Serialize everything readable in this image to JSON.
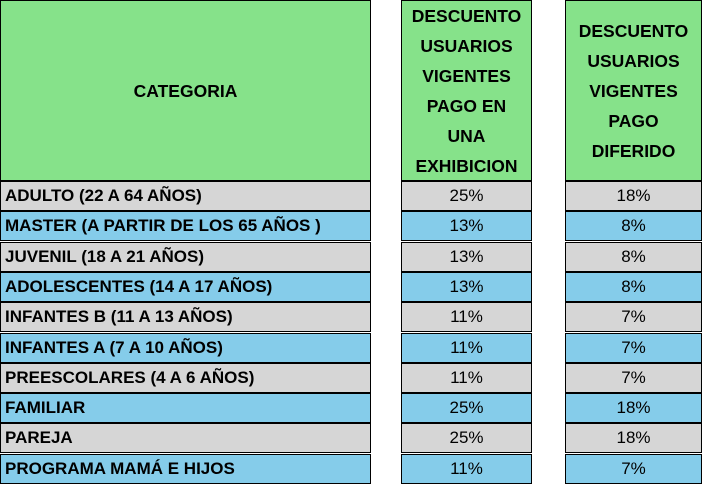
{
  "headers": {
    "category": "CATEGORIA",
    "discount_one_payment": [
      "DESCUENTO",
      "USUARIOS",
      "VIGENTES",
      "PAGO EN",
      "UNA",
      "EXHIBICION"
    ],
    "discount_deferred": [
      "DESCUENTO",
      "USUARIOS",
      "VIGENTES",
      "PAGO",
      "DIFERIDO"
    ]
  },
  "colors": {
    "header_bg": "#86e28a",
    "row_gray": "#d6d6d6",
    "row_blue": "#85ccea"
  },
  "rows": [
    {
      "category": "ADULTO (22 A 64 AÑOS)",
      "one_payment": "25%",
      "deferred": "18%",
      "shade": "gray"
    },
    {
      "category": "MASTER  (A PARTIR DE LOS 65 AÑOS )",
      "one_payment": "13%",
      "deferred": "8%",
      "shade": "blue"
    },
    {
      "category": "JUVENIL (18 A 21 AÑOS)",
      "one_payment": "13%",
      "deferred": "8%",
      "shade": "gray"
    },
    {
      "category": "ADOLESCENTES (14 A 17 AÑOS)",
      "one_payment": "13%",
      "deferred": "8%",
      "shade": "blue"
    },
    {
      "category": "INFANTES B (11 A 13 AÑOS)",
      "one_payment": "11%",
      "deferred": "7%",
      "shade": "gray"
    },
    {
      "category": "INFANTES A (7 A 10 AÑOS)",
      "one_payment": "11%",
      "deferred": "7%",
      "shade": "blue"
    },
    {
      "category": "PREESCOLARES (4 A 6 AÑOS)",
      "one_payment": "11%",
      "deferred": "7%",
      "shade": "gray"
    },
    {
      "category": "FAMILIAR",
      "one_payment": "25%",
      "deferred": "18%",
      "shade": "blue"
    },
    {
      "category": "PAREJA",
      "one_payment": "25%",
      "deferred": "18%",
      "shade": "gray"
    },
    {
      "category": "PROGRAMA MAMÁ E HIJOS",
      "one_payment": "11%",
      "deferred": "7%",
      "shade": "blue"
    }
  ]
}
